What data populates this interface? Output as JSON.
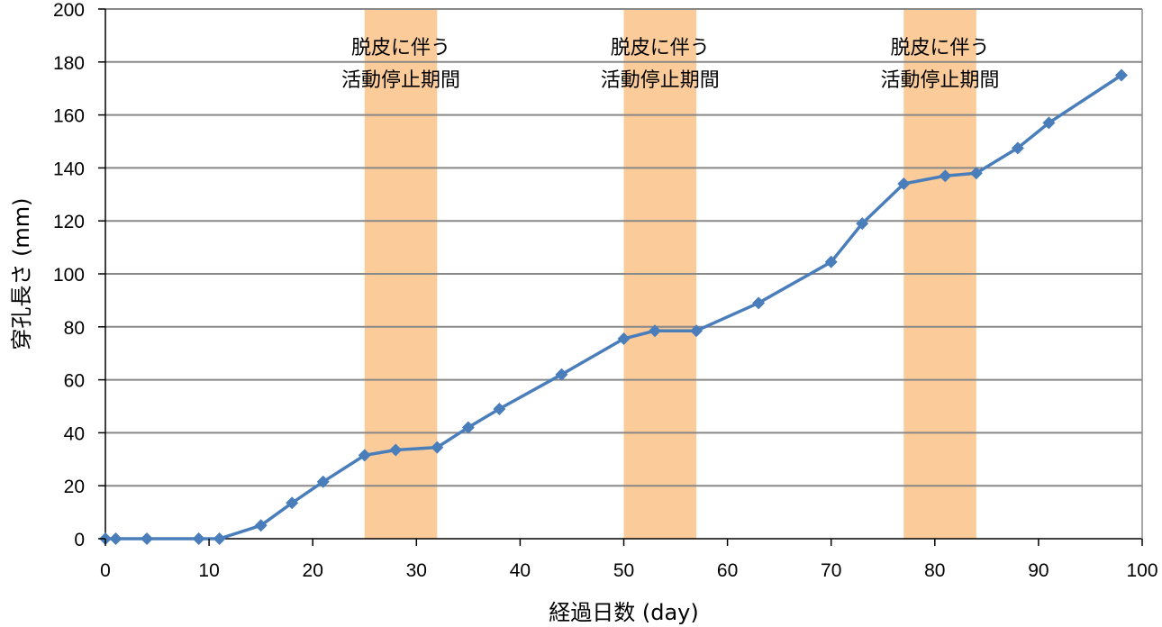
{
  "chart_data": {
    "type": "line",
    "title": "",
    "xlabel": "経過日数 (day)",
    "ylabel": "穿孔長さ (mm)",
    "xlim": [
      0,
      100
    ],
    "ylim": [
      0,
      200
    ],
    "x_ticks": [
      0,
      10,
      20,
      30,
      40,
      50,
      60,
      70,
      80,
      90,
      100
    ],
    "y_ticks": [
      0,
      20,
      40,
      60,
      80,
      100,
      120,
      140,
      160,
      180,
      200
    ],
    "grid": "horizontal",
    "series": [
      {
        "color": "#4a7ebb",
        "marker": "diamond",
        "points": [
          {
            "x": 0,
            "y": 0
          },
          {
            "x": 1,
            "y": 0
          },
          {
            "x": 4,
            "y": 0
          },
          {
            "x": 9,
            "y": 0
          },
          {
            "x": 11,
            "y": 0
          },
          {
            "x": 15,
            "y": 5
          },
          {
            "x": 18,
            "y": 13.5
          },
          {
            "x": 21,
            "y": 21.5
          },
          {
            "x": 25,
            "y": 31.5
          },
          {
            "x": 28,
            "y": 33.5
          },
          {
            "x": 32,
            "y": 34.5
          },
          {
            "x": 35,
            "y": 42
          },
          {
            "x": 38,
            "y": 49
          },
          {
            "x": 44,
            "y": 62
          },
          {
            "x": 50,
            "y": 75.5
          },
          {
            "x": 53,
            "y": 78.5
          },
          {
            "x": 57,
            "y": 78.5
          },
          {
            "x": 63,
            "y": 89
          },
          {
            "x": 70,
            "y": 104.5
          },
          {
            "x": 73,
            "y": 119
          },
          {
            "x": 77,
            "y": 134
          },
          {
            "x": 81,
            "y": 137
          },
          {
            "x": 84,
            "y": 138
          },
          {
            "x": 88,
            "y": 147.5
          },
          {
            "x": 91,
            "y": 157
          },
          {
            "x": 98,
            "y": 175
          }
        ]
      }
    ],
    "bands": [
      {
        "x_start": 25,
        "x_end": 32,
        "label_line1": "脱皮に伴う",
        "label_line2": "活動停止期間"
      },
      {
        "x_start": 50,
        "x_end": 57,
        "label_line1": "脱皮に伴う",
        "label_line2": "活動停止期間"
      },
      {
        "x_start": 77,
        "x_end": 84,
        "label_line1": "脱皮に伴う",
        "label_line2": "活動停止期間"
      }
    ],
    "colors": {
      "band": "#fbcb99",
      "grid": "#888888",
      "axis": "#000000",
      "line": "#4a7ebb"
    }
  }
}
